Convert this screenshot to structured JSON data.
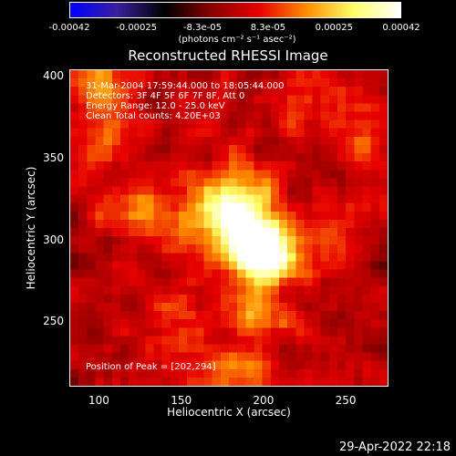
{
  "colorbar": {
    "tick_labels": [
      "-0.00042",
      "-0.00025",
      "-8.3e-05",
      "8.3e-05",
      "0.00025",
      "0.00042"
    ],
    "tick_values": [
      -0.00042,
      -0.00025,
      -8.3e-05,
      8.3e-05,
      0.00025,
      0.00042
    ],
    "units": "(photons cm⁻² s⁻¹ asec⁻²)",
    "range": [
      -0.00042,
      0.00042
    ],
    "colormap": [
      "#0000ff",
      "#3a1f9e",
      "#000000",
      "#8b0000",
      "#e60000",
      "#ff8c00",
      "#ffff66",
      "#ffffff"
    ]
  },
  "chart_data": {
    "type": "heatmap",
    "title": "Reconstructed RHESSI Image",
    "xlabel": "Heliocentric X (arcsec)",
    "ylabel": "Heliocentric Y (arcsec)",
    "xlim": [
      82,
      276
    ],
    "ylim": [
      210,
      404
    ],
    "x_ticks": [
      100,
      150,
      200,
      250
    ],
    "y_ticks": [
      250,
      300,
      350,
      400
    ],
    "x_tick_labels": [
      "100",
      "150",
      "200",
      "250"
    ],
    "y_tick_labels": [
      "250",
      "300",
      "350",
      "400"
    ],
    "grid_cells": [
      38,
      38
    ],
    "sources": [
      {
        "x": 202,
        "y": 294,
        "value": 0.00042
      },
      {
        "x": 190,
        "y": 300,
        "value": 0.0003
      },
      {
        "x": 170,
        "y": 312,
        "value": 0.00022
      },
      {
        "x": 185,
        "y": 330,
        "value": 0.00018
      },
      {
        "x": 125,
        "y": 320,
        "value": 0.00015
      },
      {
        "x": 200,
        "y": 255,
        "value": 0.00016
      },
      {
        "x": 150,
        "y": 248,
        "value": 0.00012
      },
      {
        "x": 265,
        "y": 355,
        "value": 0.00014
      },
      {
        "x": 110,
        "y": 365,
        "value": 0.00013
      },
      {
        "x": 185,
        "y": 215,
        "value": 0.0002
      },
      {
        "x": 245,
        "y": 305,
        "value": 0.0001
      },
      {
        "x": 95,
        "y": 395,
        "value": 0.00015
      },
      {
        "x": 228,
        "y": 390,
        "value": 0.00012
      }
    ],
    "annotations": {
      "time": "31-Mar-2004 17:59:44.000 to 18:05:44.000",
      "detectors": "Detectors: 3F 4F 5F 6F 7F 8F, Att 0",
      "energy": "Energy Range: 12.0 - 25.0 keV",
      "clean": "Clean     Total counts: 4.20E+03",
      "peak": "Position of Peak = [202,294]"
    }
  },
  "footer": {
    "date": "29-Apr-2022 22:18"
  }
}
